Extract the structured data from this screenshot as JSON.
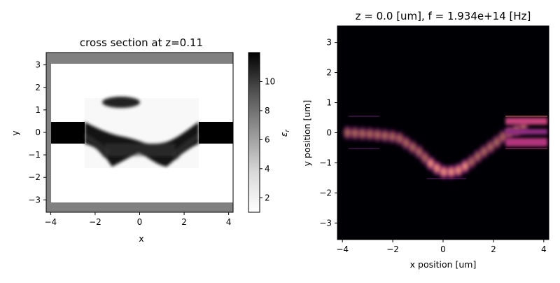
{
  "chart_data": [
    {
      "type": "heatmap",
      "title": "cross section at z=0.11",
      "xlabel": "x",
      "ylabel": "y",
      "xlim": [
        -4.2,
        4.2
      ],
      "ylim": [
        -3.55,
        3.55
      ],
      "xticks": [
        -4,
        -2,
        0,
        2,
        4
      ],
      "yticks": [
        -3,
        -2,
        -1,
        0,
        1,
        2,
        3
      ],
      "colormap": "greys",
      "colorbar": {
        "label": "ε_r",
        "range": [
          1,
          12
        ],
        "ticks": [
          2,
          4,
          6,
          8,
          10
        ]
      },
      "regions": [
        {
          "name": "background",
          "epsilon": 1
        },
        {
          "name": "pml-boundary",
          "epsilon": 6.5
        },
        {
          "name": "left-waveguide",
          "x": [
            -4.2,
            -2.5
          ],
          "y": [
            -0.5,
            0.5
          ],
          "epsilon": 12
        },
        {
          "name": "right-waveguide",
          "x": [
            2.5,
            4.2
          ],
          "y": [
            -0.5,
            0.5
          ],
          "epsilon": 12
        },
        {
          "name": "design-region",
          "x": [
            -2.5,
            2.5
          ],
          "y": [
            -1.5,
            1.5
          ]
        }
      ]
    },
    {
      "type": "heatmap",
      "title": "z = 0.0 [um], f = 1.934e+14 [Hz]",
      "xlabel": "x position [um]",
      "ylabel": "y position [um]",
      "xlim": [
        -4.2,
        4.2
      ],
      "ylim": [
        -3.55,
        3.55
      ],
      "xticks": [
        -4,
        -2,
        0,
        2,
        4
      ],
      "yticks": [
        -3,
        -2,
        -1,
        0,
        1,
        2,
        3
      ],
      "colormap": "magma",
      "field_path": [
        [
          -3.8,
          0.0
        ],
        [
          -2.8,
          -0.05
        ],
        [
          -1.8,
          -0.15
        ],
        [
          -1.0,
          -0.6
        ],
        [
          -0.4,
          -1.1
        ],
        [
          0.0,
          -1.3
        ],
        [
          0.5,
          -1.3
        ],
        [
          1.0,
          -1.05
        ],
        [
          1.5,
          -0.7
        ],
        [
          2.0,
          -0.4
        ],
        [
          2.5,
          -0.05
        ],
        [
          3.2,
          0.2
        ],
        [
          4.2,
          0.2
        ]
      ]
    }
  ]
}
